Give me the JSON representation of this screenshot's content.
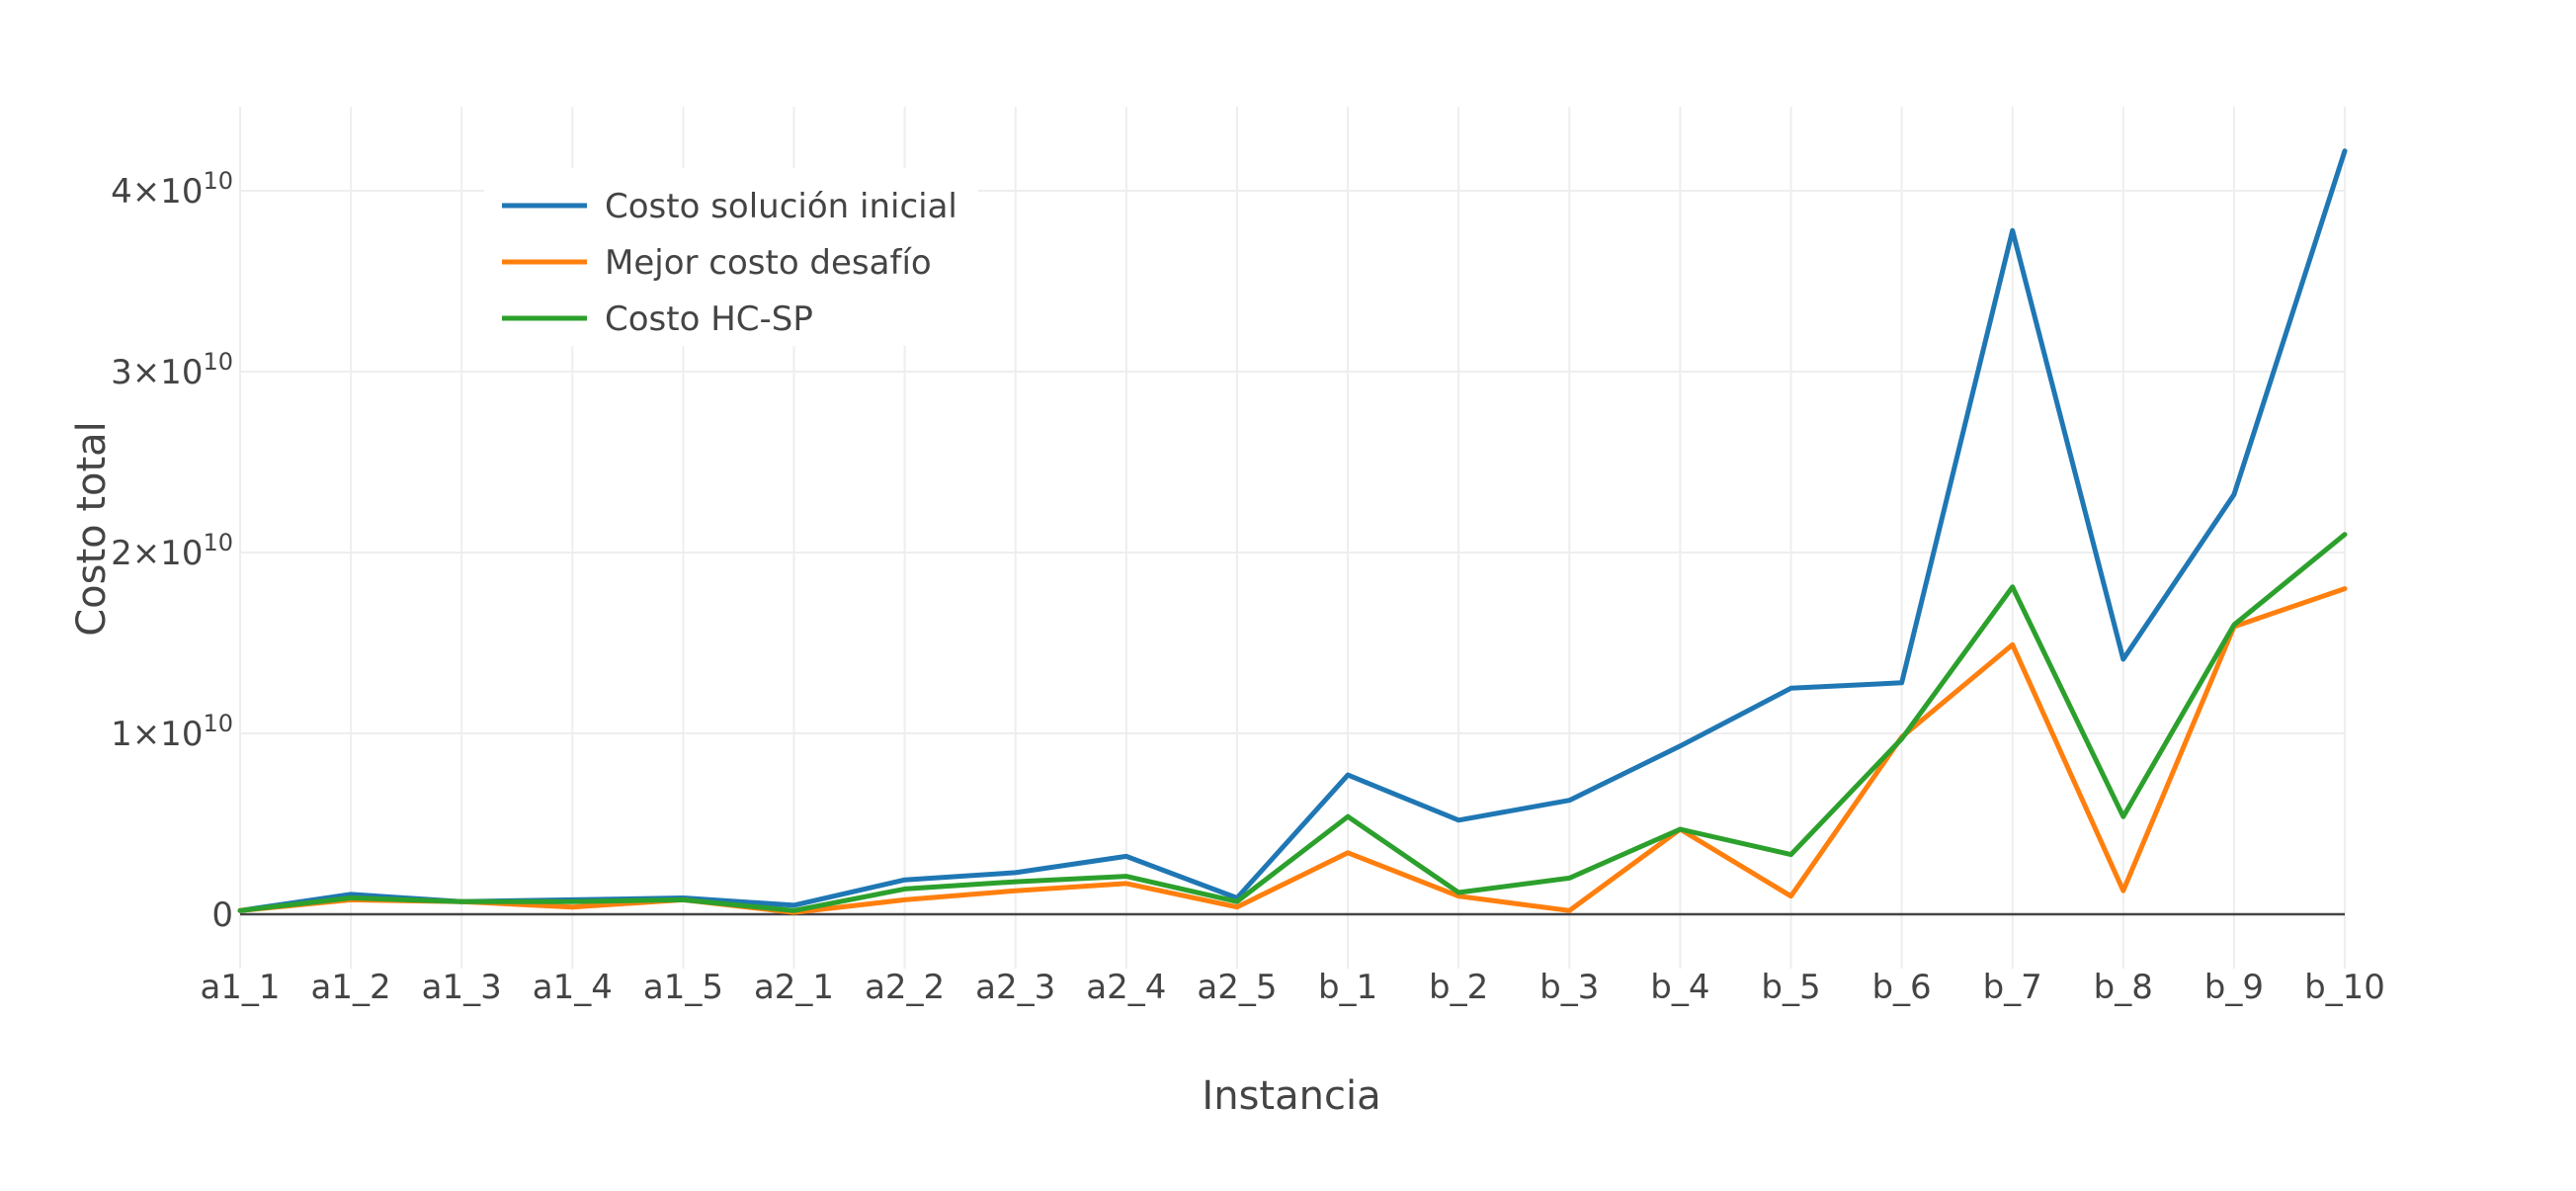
{
  "chart_data": {
    "type": "line",
    "xlabel": "Instancia",
    "ylabel": "Costo total",
    "categories": [
      "a1_1",
      "a1_2",
      "a1_3",
      "a1_4",
      "a1_5",
      "a2_1",
      "a2_2",
      "a2_3",
      "a2_4",
      "a2_5",
      "b_1",
      "b_2",
      "b_3",
      "b_4",
      "b_5",
      "b_6",
      "b_7",
      "b_8",
      "b_9",
      "b_10"
    ],
    "ylim": [
      -2000000000,
      45000000000
    ],
    "yticks": [
      {
        "value": 0,
        "label": "0"
      },
      {
        "value": 10000000000,
        "label": "1×10",
        "exp": "10"
      },
      {
        "value": 20000000000,
        "label": "2×10",
        "exp": "10"
      },
      {
        "value": 30000000000,
        "label": "3×10",
        "exp": "10"
      },
      {
        "value": 40000000000,
        "label": "4×10",
        "exp": "10"
      }
    ],
    "grid": true,
    "legend_position": "top-left",
    "series": [
      {
        "name": "Costo solución inicial",
        "color": "#1f77b4",
        "values": [
          200000000,
          1100000000,
          700000000,
          800000000,
          900000000,
          500000000,
          1900000000,
          2300000000,
          3200000000,
          900000000,
          7700000000,
          5200000000,
          6300000000,
          9300000000,
          12500000000,
          12800000000,
          37800000000,
          14100000000,
          23200000000,
          42200000000
        ]
      },
      {
        "name": "Mejor costo desafío",
        "color": "#ff7f0e",
        "values": [
          200000000,
          800000000,
          700000000,
          400000000,
          800000000,
          100000000,
          800000000,
          1300000000,
          1700000000,
          400000000,
          3400000000,
          1000000000,
          200000000,
          4700000000,
          1000000000,
          9800000000,
          14900000000,
          1300000000,
          15900000000,
          18000000000
        ]
      },
      {
        "name": "Costo HC-SP",
        "color": "#2ca02c",
        "values": [
          200000000,
          900000000,
          700000000,
          700000000,
          800000000,
          200000000,
          1400000000,
          1800000000,
          2100000000,
          700000000,
          5400000000,
          1200000000,
          2000000000,
          4700000000,
          3300000000,
          9700000000,
          18100000000,
          5400000000,
          16000000000,
          21000000000
        ]
      }
    ]
  }
}
